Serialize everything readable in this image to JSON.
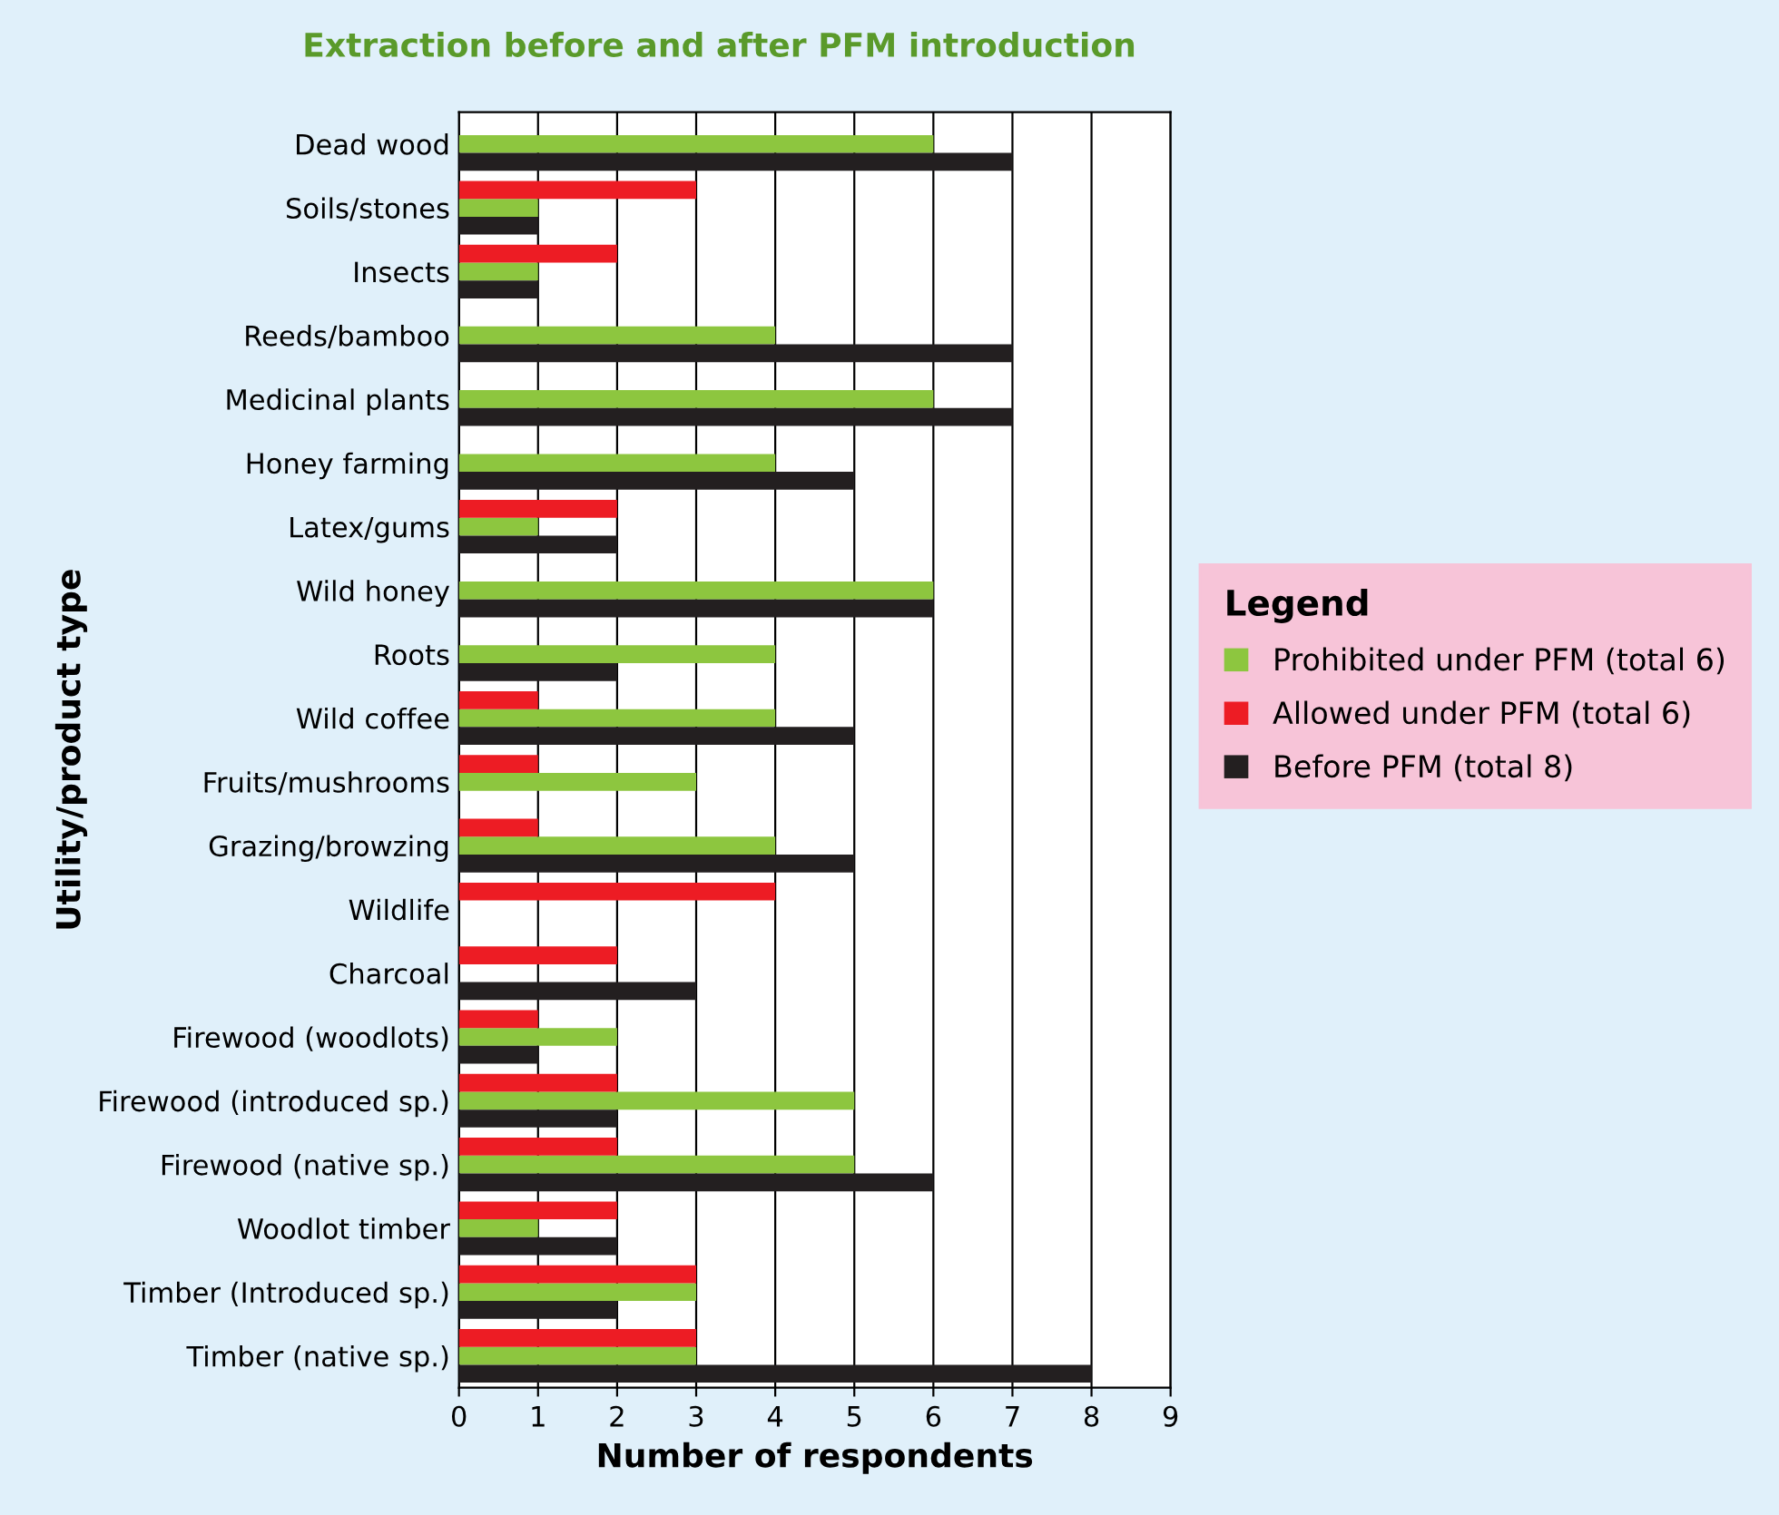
{
  "chart_data": {
    "type": "bar",
    "orientation": "horizontal",
    "title": "Extraction before and after PFM introduction",
    "xlabel": "Number of respondents",
    "ylabel": "Utility/product type",
    "legend_title": "Legend",
    "categories": [
      "Dead wood",
      "Soils/stones",
      "Insects",
      "Reeds/bamboo",
      "Medicinal plants",
      "Honey farming",
      "Latex/gums",
      "Wild honey",
      "Roots",
      "Wild coffee",
      "Fruits/mushrooms",
      "Grazing/browzing",
      "Wildlife",
      "Charcoal",
      "Firewood (woodlots)",
      "Firewood (introduced sp.)",
      "Firewood (native sp.)",
      "Woodlot timber",
      "Timber (Introduced sp.)",
      "Timber (native sp.)"
    ],
    "series": [
      {
        "name": "Prohibited under PFM (total 6)",
        "color": "#8dc63f",
        "values": [
          6,
          1,
          1,
          4,
          6,
          4,
          1,
          6,
          4,
          4,
          3,
          4,
          null,
          null,
          2,
          5,
          5,
          1,
          3,
          3
        ]
      },
      {
        "name": "Allowed under PFM (total 6)",
        "color": "#ed1c24",
        "values": [
          null,
          3,
          2,
          null,
          null,
          null,
          2,
          null,
          null,
          1,
          1,
          1,
          4,
          2,
          1,
          2,
          2,
          2,
          3,
          3
        ]
      },
      {
        "name": "Before PFM (total 8)",
        "color": "#231f20",
        "values": [
          7,
          1,
          1,
          7,
          7,
          5,
          2,
          6,
          2,
          5,
          null,
          5,
          null,
          3,
          1,
          2,
          6,
          2,
          2,
          8
        ]
      }
    ],
    "xlim": [
      0,
      9
    ],
    "xticks": [
      0,
      1,
      2,
      3,
      4,
      5,
      6,
      7,
      8,
      9
    ],
    "grid": "x",
    "legend": "right"
  }
}
